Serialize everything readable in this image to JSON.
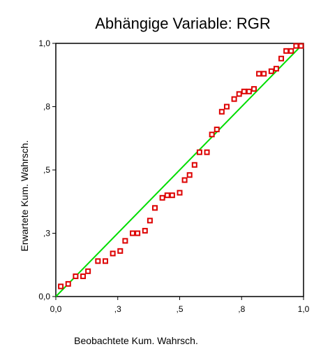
{
  "chart_data": {
    "type": "scatter",
    "title": "Abhängige Variable: RGR",
    "xlabel": "Beobachtete Kum.  Wahrsch.",
    "ylabel": "Erwartete Kum.  Wahrsch.",
    "xlim": [
      0,
      1
    ],
    "ylim": [
      0,
      1
    ],
    "x_ticks": [
      {
        "value": 0.0,
        "label": "0,0"
      },
      {
        "value": 0.25,
        "label": ",3"
      },
      {
        "value": 0.5,
        "label": ",5"
      },
      {
        "value": 0.75,
        "label": ",8"
      },
      {
        "value": 1.0,
        "label": "1,0"
      }
    ],
    "y_ticks": [
      {
        "value": 0.0,
        "label": "0,0"
      },
      {
        "value": 0.25,
        "label": ",3"
      },
      {
        "value": 0.5,
        "label": ",5"
      },
      {
        "value": 0.75,
        "label": ",8"
      },
      {
        "value": 1.0,
        "label": "1,0"
      }
    ],
    "grid": false,
    "reference_line": {
      "from": [
        0,
        0
      ],
      "to": [
        1,
        1
      ],
      "color": "#00dd00"
    },
    "marker_color": "#dd0000",
    "series": [
      {
        "x": [
          0.02,
          0.05,
          0.08,
          0.11,
          0.13,
          0.17,
          0.2,
          0.23,
          0.26,
          0.28,
          0.31,
          0.33,
          0.36,
          0.38,
          0.4,
          0.43,
          0.45,
          0.47,
          0.5,
          0.52,
          0.54,
          0.56,
          0.58,
          0.61,
          0.63,
          0.65,
          0.67,
          0.69,
          0.72,
          0.74,
          0.76,
          0.78,
          0.8,
          0.82,
          0.84,
          0.87,
          0.89,
          0.91,
          0.93,
          0.95,
          0.97,
          0.99
        ],
        "y": [
          0.04,
          0.05,
          0.08,
          0.08,
          0.1,
          0.14,
          0.14,
          0.17,
          0.18,
          0.22,
          0.25,
          0.25,
          0.26,
          0.3,
          0.35,
          0.39,
          0.4,
          0.4,
          0.41,
          0.46,
          0.48,
          0.52,
          0.57,
          0.57,
          0.64,
          0.66,
          0.73,
          0.75,
          0.78,
          0.8,
          0.81,
          0.81,
          0.82,
          0.88,
          0.88,
          0.89,
          0.9,
          0.94,
          0.97,
          0.97,
          0.99,
          0.99
        ]
      }
    ]
  }
}
